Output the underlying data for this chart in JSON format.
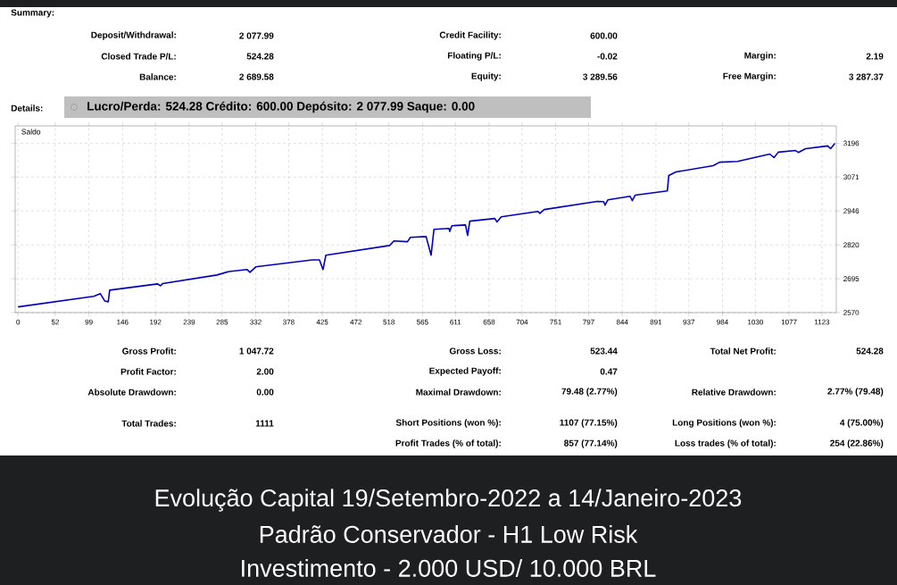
{
  "chart_data": {
    "type": "line",
    "title": "Evolução Capital 19/Setembro-2022 a 14/Janeiro-2023",
    "subtitle": "Padrão Conservador - H1 Low Risk",
    "annotations": [
      "Investimento - 2.000 USD/ 10.000 BRL",
      "Summary:",
      "Deposit/Withdrawal:",
      "2 077.99",
      "Credit Facility:",
      "600.00",
      "Closed Trade P/L:",
      "524.28",
      "Floating P/L:",
      "-0.02",
      "Margin:",
      "2.19",
      "Balance:",
      "2 689.58",
      "Equity:",
      "3 289.56",
      "Free Margin:",
      "3 287.37",
      "Details:",
      "Lucro/Perda: 524.28  Crédito: 600.00  Depósito: 2 077.99  Saque: 0.00",
      "Gross Profit:",
      "1 047.72",
      "Gross Loss:",
      "523.44",
      "Total Net Profit:",
      "524.28",
      "Profit Factor:",
      "2.00",
      "Expected Payoff:",
      "0.47",
      "Absolute Drawdown:",
      "0.00",
      "Maximal Drawdown:",
      "79.48 (2.77%)",
      "Relative Drawdown:",
      "2.77% (79.48)",
      "Total Trades:",
      "1111",
      "Short Positions (won %):",
      "1107 (77.15%)",
      "Long Positions (won %):",
      "4 (75.00%)",
      "Profit Trades (% of total):",
      "857 (77.14%)",
      "Loss trades (% of total):",
      "254 (22.86%)"
    ],
    "series": [
      {
        "name": "Saldo",
        "color": "#0000c0",
        "x": [
          0,
          106,
          115,
          121,
          126,
          128,
          195,
          199,
          202,
          278,
          295,
          320,
          324,
          332,
          411,
          421,
          426,
          430,
          519,
          525,
          544,
          548,
          570,
          577,
          581,
          602,
          603,
          606,
          625,
          628,
          631,
          666,
          669,
          675,
          726,
          729,
          735,
          809,
          818,
          820,
          824,
          855,
          858,
          862,
          907,
          909,
          919,
          971,
          980,
          1005,
          1050,
          1056,
          1062,
          1086,
          1090,
          1100,
          1131,
          1135,
          1141
        ],
        "values": [
          2591,
          2630,
          2640,
          2613,
          2610,
          2653,
          2676,
          2669,
          2677,
          2709,
          2722,
          2729,
          2719,
          2739,
          2765,
          2765,
          2729,
          2782,
          2818,
          2835,
          2832,
          2848,
          2851,
          2782,
          2878,
          2881,
          2870,
          2891,
          2894,
          2855,
          2908,
          2918,
          2905,
          2924,
          2944,
          2937,
          2951,
          2981,
          2980,
          2967,
          2987,
          3000,
          2984,
          3004,
          3020,
          3077,
          3090,
          3113,
          3126,
          3129,
          3156,
          3143,
          3163,
          3169,
          3162,
          3176,
          3186,
          3176,
          3196
        ]
      }
    ],
    "xlim": [
      -4,
      1143
    ],
    "xticks": [
      0,
      52,
      99,
      146,
      192,
      239,
      285,
      332,
      378,
      425,
      472,
      518,
      565,
      611,
      658,
      704,
      751,
      797,
      844,
      891,
      937,
      984,
      1030,
      1077,
      1123
    ],
    "ylim": [
      2570,
      3260
    ],
    "yticks": [
      2570,
      2695,
      2820,
      2946,
      3071,
      3196
    ],
    "grid": true,
    "legend": "top left"
  }
}
